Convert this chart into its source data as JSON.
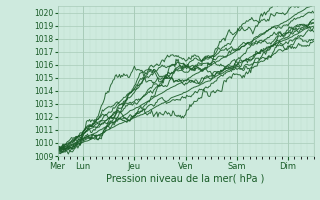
{
  "xlabel": "Pression niveau de la mer( hPa )",
  "ylim": [
    1009,
    1020.5
  ],
  "yticks": [
    1009,
    1010,
    1011,
    1012,
    1013,
    1014,
    1015,
    1016,
    1017,
    1018,
    1019,
    1020
  ],
  "bg_color": "#ceeade",
  "grid_major_color": "#a8cbb8",
  "grid_minor_color": "#bcdccc",
  "line_color": "#1a5c28",
  "tick_label_color": "#1a5c28",
  "day_labels": [
    "Mer",
    "Lun",
    "Jeu",
    "Ven",
    "Sam",
    "Dim"
  ],
  "day_positions": [
    0,
    24,
    72,
    120,
    168,
    216
  ],
  "total_hours": 240,
  "n_points": 241
}
